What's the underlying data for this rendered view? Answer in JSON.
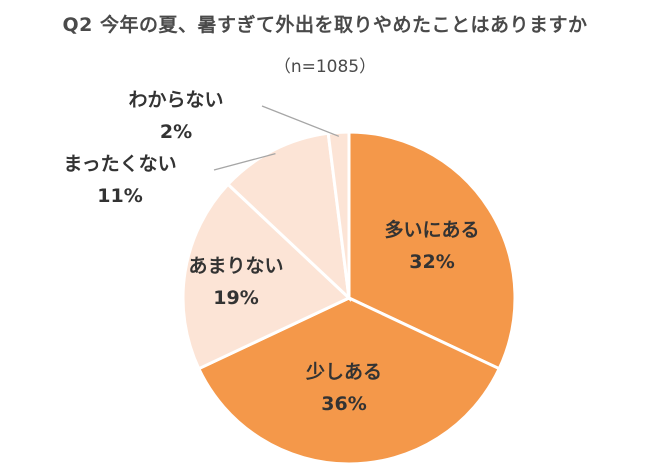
{
  "chart_data": {
    "type": "pie",
    "title": "Q2 今年の夏、暑すぎて外出を取りやめたことはありますか",
    "subtitle": "（n=1085）",
    "slices": [
      {
        "label": "多いにある",
        "value": 32,
        "value_label": "32%",
        "color": "#F4984A"
      },
      {
        "label": "少しある",
        "value": 36,
        "value_label": "36%",
        "color": "#F4984A"
      },
      {
        "label": "あまりない",
        "value": 19,
        "value_label": "19%",
        "color": "#FCE4D6"
      },
      {
        "label": "まったくない",
        "value": 11,
        "value_label": "11%",
        "color": "#FCE4D6"
      },
      {
        "label": "わからない",
        "value": 2,
        "value_label": "2%",
        "color": "#FCE4D6"
      }
    ],
    "start_angle_deg": 0,
    "direction": "clockwise",
    "slice_border_color": "#FFFFFF",
    "leader_line_color": "#A6A6A6"
  }
}
